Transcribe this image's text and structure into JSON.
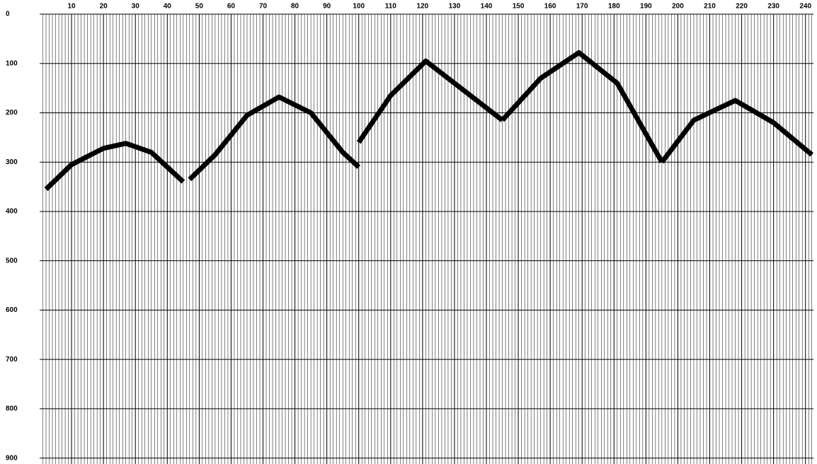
{
  "chart_data": {
    "type": "line",
    "xlim": [
      0,
      242.5
    ],
    "ylim": [
      0,
      912
    ],
    "xticks": [
      10,
      20,
      30,
      40,
      50,
      60,
      70,
      80,
      90,
      100,
      110,
      120,
      130,
      140,
      150,
      160,
      170,
      180,
      190,
      200,
      210,
      220,
      230,
      240
    ],
    "yticks": [
      0,
      100,
      200,
      300,
      400,
      500,
      600,
      700,
      800,
      900
    ],
    "grid": true,
    "series": [
      {
        "color": "#000000",
        "x": [
          2,
          10,
          20,
          27,
          35,
          45
        ],
        "values": [
          355,
          305,
          272,
          262,
          280,
          340
        ]
      },
      {
        "color": "#000000",
        "x": [
          47,
          55,
          65,
          75,
          85,
          95,
          100
        ],
        "values": [
          335,
          285,
          205,
          168,
          200,
          280,
          310
        ]
      },
      {
        "color": "#000000",
        "x": [
          100,
          110,
          121,
          132,
          145
        ],
        "values": [
          260,
          165,
          95,
          150,
          215
        ]
      },
      {
        "color": "#000000",
        "x": [
          145,
          157,
          169,
          181,
          195
        ],
        "values": [
          215,
          130,
          78,
          140,
          300
        ]
      },
      {
        "color": "#000000",
        "x": [
          195,
          205,
          218,
          230,
          242
        ],
        "values": [
          300,
          215,
          175,
          220,
          285
        ]
      }
    ]
  }
}
